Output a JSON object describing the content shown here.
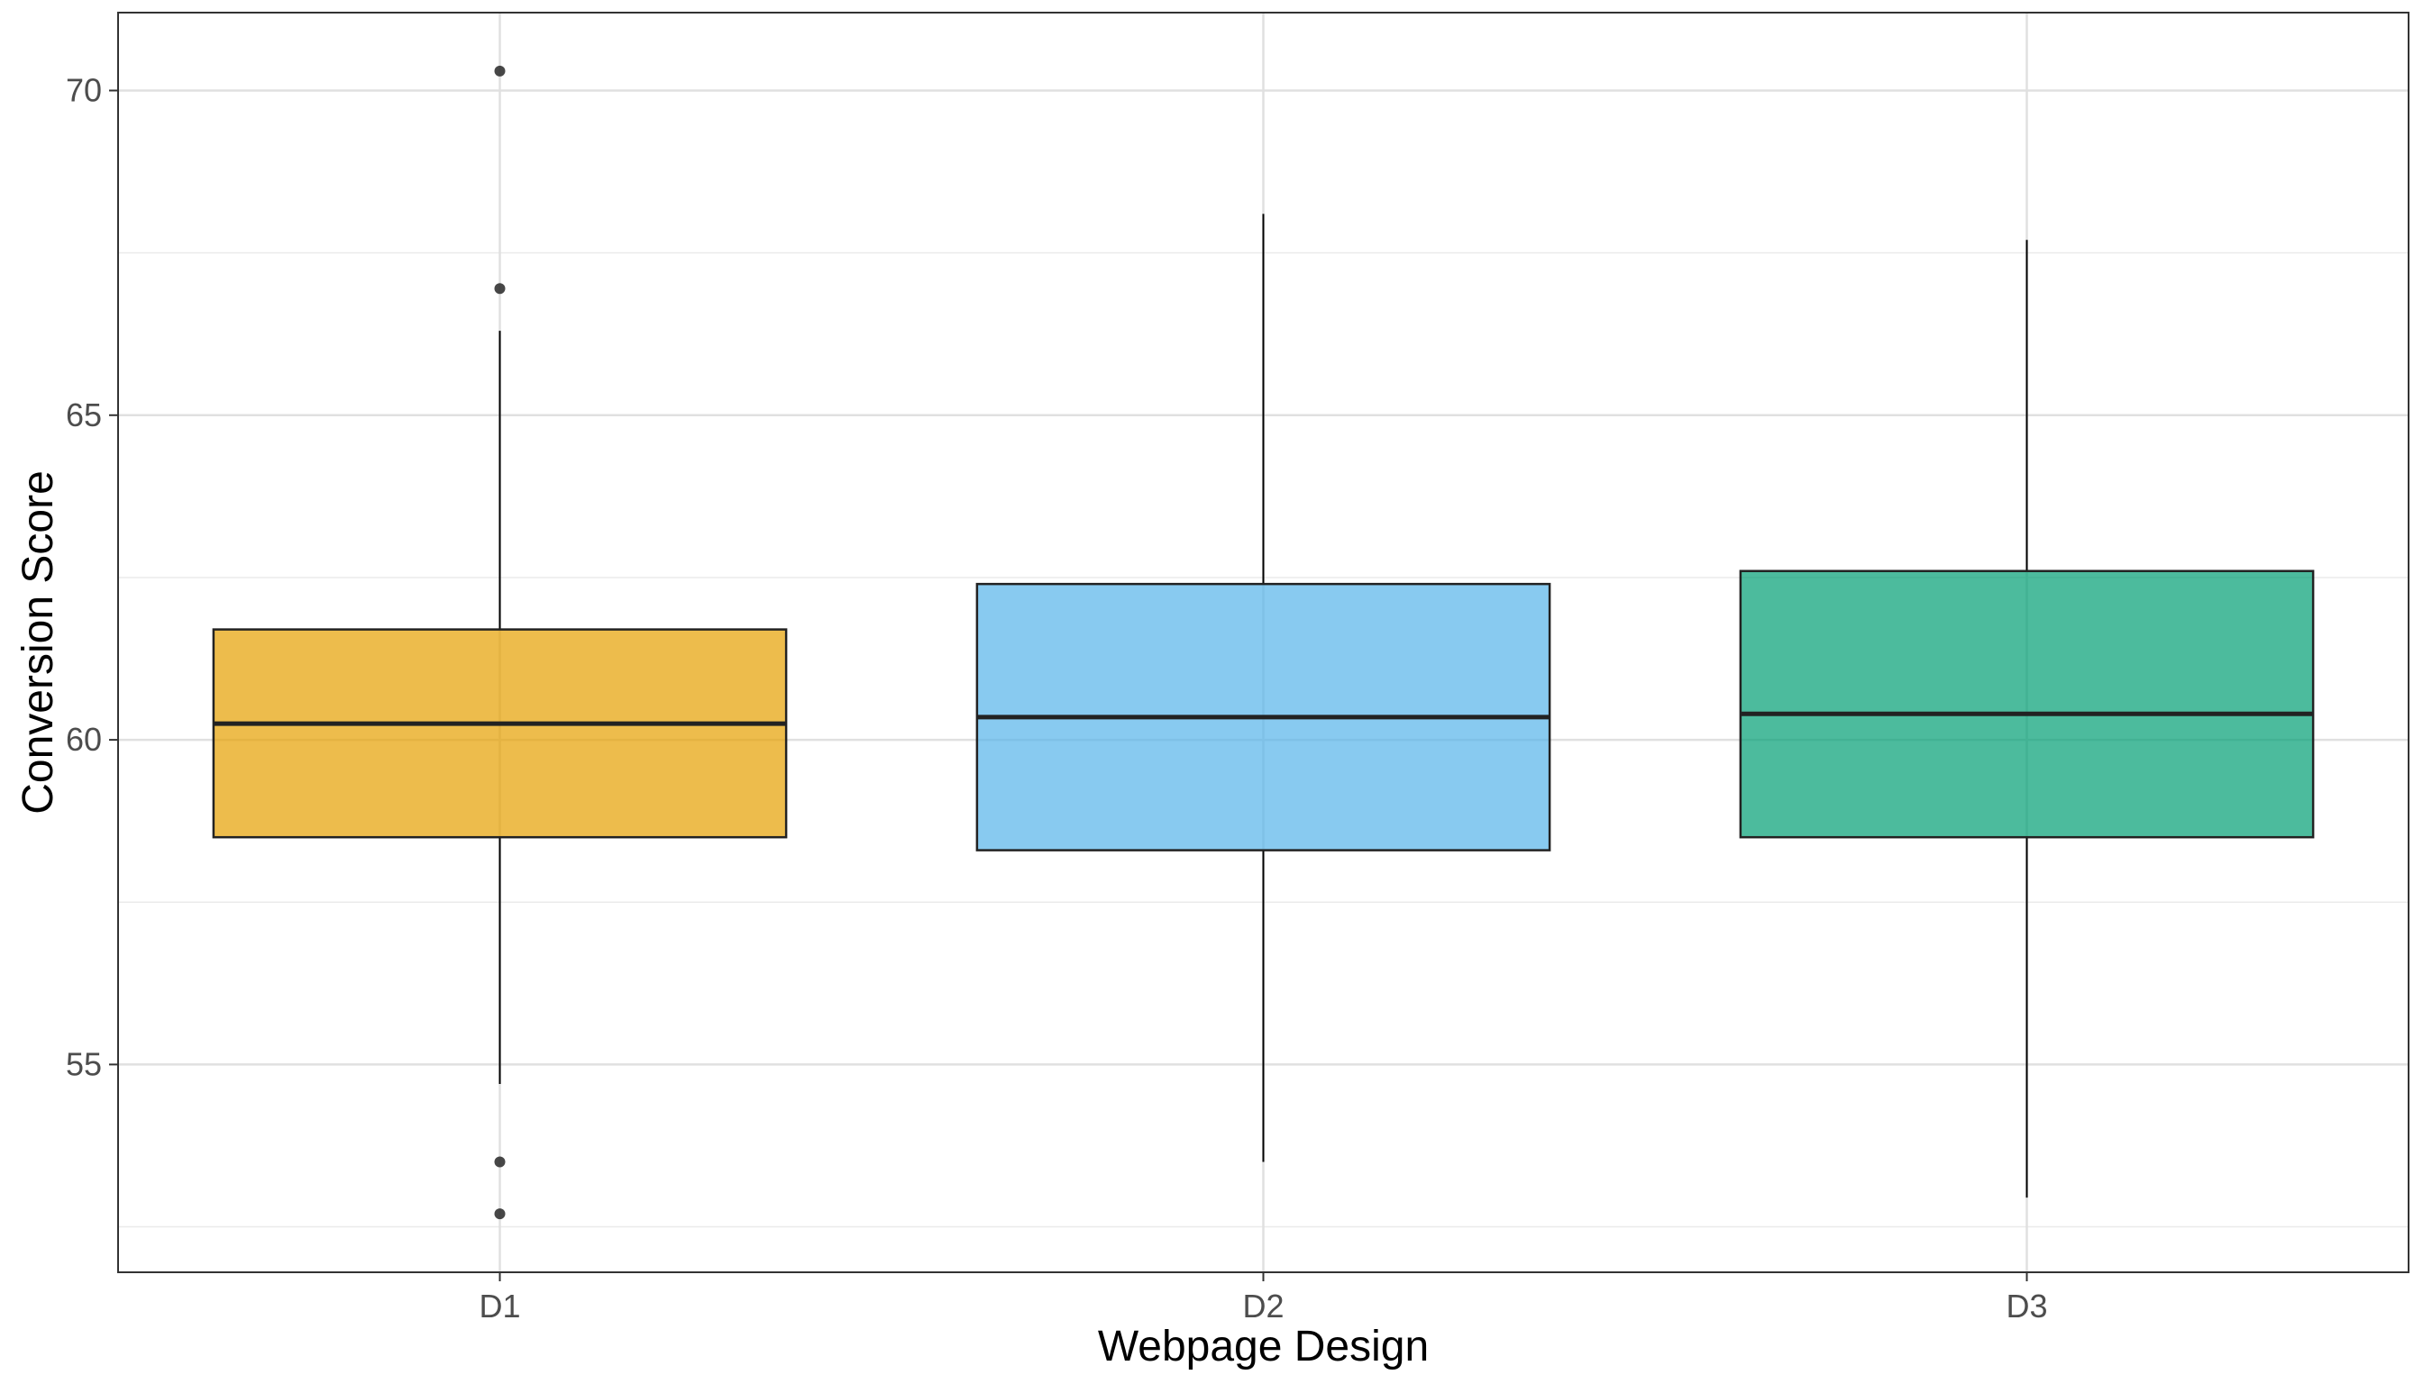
{
  "chart_data": {
    "type": "boxplot",
    "title": "",
    "xlabel": "Webpage Design",
    "ylabel": "Conversion Score",
    "ylim": [
      51.8,
      71.2
    ],
    "yticks": [
      55,
      60,
      65,
      70
    ],
    "grid": true,
    "legend": "none",
    "categories": [
      "D1",
      "D2",
      "D3"
    ],
    "boxes": [
      {
        "category": "D1",
        "color": "#E69F00",
        "whisker_low": 54.7,
        "q1": 58.5,
        "median": 60.25,
        "q3": 61.7,
        "whisker_high": 66.3,
        "outliers": [
          70.3,
          66.95,
          53.5,
          52.7
        ]
      },
      {
        "category": "D2",
        "color": "#56B4E9",
        "whisker_low": 53.5,
        "q1": 58.3,
        "median": 60.35,
        "q3": 62.4,
        "whisker_high": 68.1,
        "outliers": []
      },
      {
        "category": "D3",
        "color": "#009E73",
        "whisker_low": 52.95,
        "q1": 58.5,
        "median": 60.4,
        "q3": 62.6,
        "whisker_high": 67.7,
        "outliers": []
      }
    ]
  }
}
